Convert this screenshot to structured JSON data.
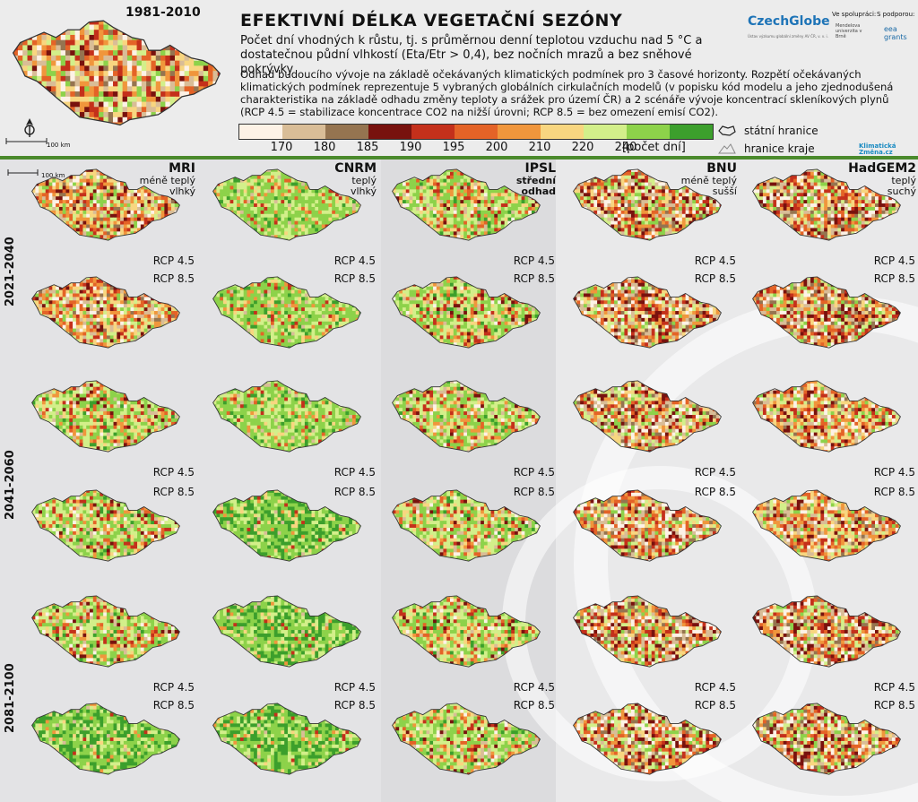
{
  "header": {
    "title": "EFEKTIVNÍ DÉLKA VEGETAČNÍ SEZÓNY",
    "subtitle": "Počet dní vhodných k růstu, tj. s průměrnou denní teplotou vzduchu nad 5 °C a dostatečnou půdní vlhkostí (Eta/Etr > 0,4), bez nočních mrazů a bez sněhové pokrývky",
    "description": "Odhad budoucího vývoje na základě očekávaných klimatických podmínek pro 3 časové horizonty. Rozpětí očekávaných klimatických podmínek reprezentuje 5 vybraných globálních cirkulačních modelů (v popisku kód modelu a jeho zjednodušená charakteristika na základě odhadu změny teploty a srážek pro území ČR) a 2 scénáře vývoje koncentrací skleníkových plynů (RCP 4.5 = stabilizace koncentrace CO2 na nižší úrovni; RCP 8.5 = bez omezení emisí CO2)."
  },
  "overview": {
    "period": "1981-2010",
    "scale_label": "100 km",
    "scale_zero": "0"
  },
  "grid_scale": {
    "zero": "0",
    "label": "100 km"
  },
  "legend": {
    "colors": [
      "#fdf2e6",
      "#d9bd97",
      "#957450",
      "#78120e",
      "#c4301b",
      "#e46327",
      "#f0963c",
      "#f8d680",
      "#d3ef8a",
      "#8dd24a",
      "#3c9f2c"
    ],
    "labels": [
      "170",
      "180",
      "185",
      "190",
      "195",
      "200",
      "210",
      "220",
      "240"
    ],
    "unit": "[počet dní]",
    "state_border": "státní hranice",
    "region_border": "hranice kraje"
  },
  "logos": {
    "czechglobe": "CzechGlobe",
    "czechglobe_sub": "Ústav výzkumu globální změny AV ČR, v. v. i.",
    "partner": "Ve spolupráci:",
    "mendelu": "Mendelova univerzita v Brně",
    "support": "S podporou:",
    "eea": "eea grants",
    "klimaticka_zmena": "Klimatická Změna.cz"
  },
  "models": [
    {
      "code": "MRI",
      "char1": "méně teplý",
      "char2": "vlhký"
    },
    {
      "code": "CNRM",
      "char1": "teplý",
      "char2": "vlhký"
    },
    {
      "code": "IPSL",
      "char1": "střední",
      "char2": "odhad"
    },
    {
      "code": "BNU",
      "char1": "méně teplý",
      "char2": "sušší"
    },
    {
      "code": "HadGEM2",
      "char1": "teplý",
      "char2": "suchý"
    }
  ],
  "periods": [
    "2021-2040",
    "2041-2060",
    "2081-2100"
  ],
  "scenarios": [
    "RCP 4.5",
    "RCP 8.5"
  ],
  "maps": [
    [
      "warm",
      "green",
      "mid",
      "hot",
      "hot"
    ],
    [
      "warm",
      "green",
      "mid",
      "hot",
      "hot"
    ],
    [
      "mid",
      "green",
      "mid",
      "hot",
      "warm"
    ],
    [
      "mid",
      "green2",
      "mid",
      "hot",
      "warm"
    ],
    [
      "mid",
      "green2",
      "mid",
      "hot",
      "hot"
    ],
    [
      "green2",
      "green2",
      "mid",
      "hot",
      "hot"
    ]
  ]
}
